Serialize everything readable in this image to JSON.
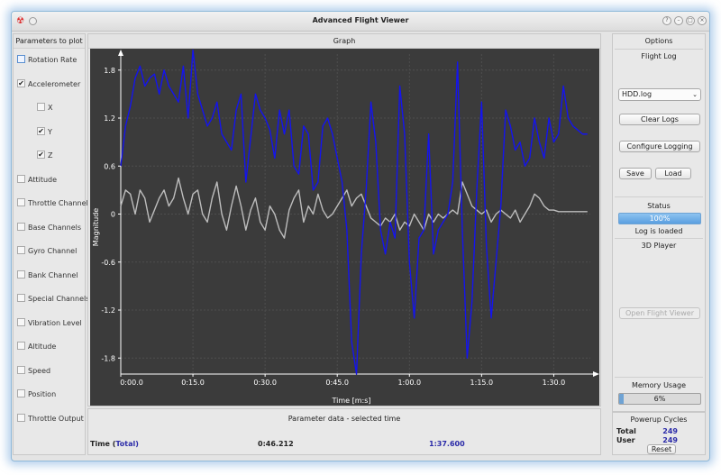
{
  "window": {
    "title": "Advanced Flight Viewer"
  },
  "parameters": {
    "header": "Parameters to plot",
    "items": [
      {
        "label": "Rotation Rate",
        "checked": false,
        "indent": false
      },
      {
        "label": "Accelerometer",
        "checked": true,
        "indent": false
      },
      {
        "label": "X",
        "checked": false,
        "indent": true
      },
      {
        "label": "Y",
        "checked": true,
        "indent": true
      },
      {
        "label": "Z",
        "checked": true,
        "indent": true
      },
      {
        "label": "Attitude",
        "checked": false,
        "indent": false
      },
      {
        "label": "Throttle Channel",
        "checked": false,
        "indent": false
      },
      {
        "label": "Base Channels",
        "checked": false,
        "indent": false
      },
      {
        "label": "Gyro Channel",
        "checked": false,
        "indent": false
      },
      {
        "label": "Bank Channel",
        "checked": false,
        "indent": false
      },
      {
        "label": "Special Channels",
        "checked": false,
        "indent": false
      },
      {
        "label": "Vibration Level",
        "checked": false,
        "indent": false
      },
      {
        "label": "Altitude",
        "checked": false,
        "indent": false
      },
      {
        "label": "Speed",
        "checked": false,
        "indent": false
      },
      {
        "label": "Position",
        "checked": false,
        "indent": false
      },
      {
        "label": "Throttle Output",
        "checked": false,
        "indent": false
      }
    ]
  },
  "graph": {
    "header": "Graph",
    "ylabel": "Magnitude",
    "xlabel": "Time [m:s]",
    "ylim": [
      -2.0,
      2.0
    ],
    "xlim_seconds": [
      0,
      97.6
    ],
    "yticks": [
      "1.8",
      "1.2",
      "0.6",
      "0",
      "-0.6",
      "-1.2",
      "-1.8"
    ],
    "ytick_values": [
      1.8,
      1.2,
      0.6,
      0,
      -0.6,
      -1.2,
      -1.8
    ],
    "xticks": [
      "0:00.0",
      "0:15.0",
      "0:30.0",
      "0:45.0",
      "1:00.0",
      "1:15.0",
      "1:30.0"
    ],
    "xtick_values": [
      0,
      15,
      30,
      45,
      60,
      75,
      90
    ],
    "colors": {
      "background": "#3b3b3b",
      "grid": "#4e4e4e",
      "series_y": "#1414ee",
      "series_z": "#bdbdbd",
      "axis": "#ffffff"
    }
  },
  "chart_data": {
    "type": "line",
    "ylabel": "Magnitude",
    "xlabel": "Time [m:s]",
    "grid": true,
    "series": [
      {
        "color": "#1414ee",
        "x": [
          0,
          1,
          2,
          3,
          4,
          5,
          6,
          7,
          8,
          9,
          10,
          11,
          12,
          13,
          14,
          15,
          16,
          17,
          18,
          19,
          20,
          21,
          22,
          23,
          24,
          25,
          26,
          27,
          28,
          29,
          30,
          31,
          32,
          33,
          34,
          35,
          36,
          37,
          38,
          39,
          40,
          41,
          42,
          43,
          44,
          45,
          46,
          47,
          48,
          49,
          50,
          51,
          52,
          53,
          54,
          55,
          56,
          57,
          58,
          59,
          60,
          61,
          62,
          63,
          64,
          65,
          66,
          67,
          68,
          69,
          70,
          71,
          72,
          73,
          74,
          75,
          76,
          77,
          78,
          79,
          80,
          81,
          82,
          83,
          84,
          85,
          86,
          87,
          88,
          89,
          90,
          91,
          92,
          93,
          94,
          95,
          96,
          97
        ],
        "y": [
          0.6,
          1.1,
          1.35,
          1.7,
          1.85,
          1.6,
          1.7,
          1.75,
          1.5,
          1.8,
          1.6,
          1.5,
          1.4,
          1.85,
          1.2,
          2.05,
          1.5,
          1.3,
          1.1,
          1.2,
          1.4,
          1.0,
          0.9,
          0.8,
          1.3,
          1.5,
          0.4,
          0.95,
          1.5,
          1.3,
          1.2,
          1.05,
          0.7,
          1.3,
          1.0,
          1.3,
          0.6,
          0.5,
          1.1,
          1.0,
          0.3,
          0.4,
          1.1,
          1.2,
          1.0,
          0.7,
          0.4,
          -0.2,
          -1.6,
          -2.0,
          -0.5,
          0.3,
          1.4,
          0.9,
          -0.2,
          -0.5,
          -0.1,
          -0.3,
          1.6,
          1.0,
          -0.6,
          -1.3,
          -0.3,
          -0.2,
          1.0,
          -0.5,
          -0.2,
          -0.1,
          0.0,
          0.4,
          1.9,
          -0.2,
          -1.8,
          -1.1,
          0.3,
          1.4,
          -0.4,
          -1.3,
          -0.6,
          0.1,
          1.3,
          1.1,
          0.8,
          0.9,
          0.6,
          0.7,
          1.2,
          0.9,
          0.7,
          1.2,
          0.9,
          1.0,
          1.6,
          1.2,
          1.1,
          1.05,
          1.0,
          1.0
        ]
      },
      {
        "color": "#bdbdbd",
        "x": [
          0,
          1,
          2,
          3,
          4,
          5,
          6,
          7,
          8,
          9,
          10,
          11,
          12,
          13,
          14,
          15,
          16,
          17,
          18,
          19,
          20,
          21,
          22,
          23,
          24,
          25,
          26,
          27,
          28,
          29,
          30,
          31,
          32,
          33,
          34,
          35,
          36,
          37,
          38,
          39,
          40,
          41,
          42,
          43,
          44,
          45,
          46,
          47,
          48,
          49,
          50,
          51,
          52,
          53,
          54,
          55,
          56,
          57,
          58,
          59,
          60,
          61,
          62,
          63,
          64,
          65,
          66,
          67,
          68,
          69,
          70,
          71,
          72,
          73,
          74,
          75,
          76,
          77,
          78,
          79,
          80,
          81,
          82,
          83,
          84,
          85,
          86,
          87,
          88,
          89,
          90,
          91,
          92,
          93,
          94,
          95,
          96,
          97
        ],
        "y": [
          0.1,
          0.3,
          0.25,
          0.0,
          0.3,
          0.2,
          -0.1,
          0.05,
          0.2,
          0.3,
          0.1,
          0.2,
          0.45,
          0.2,
          0.0,
          0.25,
          0.3,
          0.0,
          -0.1,
          0.2,
          0.4,
          0.0,
          -0.2,
          0.1,
          0.35,
          0.1,
          -0.2,
          0.05,
          0.2,
          -0.1,
          -0.2,
          0.1,
          0.0,
          -0.2,
          -0.3,
          0.05,
          0.2,
          0.3,
          -0.1,
          0.1,
          0.0,
          0.25,
          0.05,
          -0.05,
          0.0,
          0.1,
          0.2,
          0.3,
          0.1,
          0.2,
          0.25,
          0.1,
          -0.05,
          -0.1,
          -0.15,
          -0.05,
          -0.1,
          0.0,
          -0.2,
          -0.1,
          -0.15,
          0.0,
          -0.1,
          -0.2,
          0.0,
          -0.1,
          0.0,
          -0.05,
          0.0,
          0.05,
          0.0,
          0.4,
          0.25,
          0.1,
          0.05,
          0.0,
          0.05,
          -0.1,
          0.0,
          0.05,
          0.0,
          -0.05,
          0.05,
          -0.1,
          0.0,
          0.1,
          0.25,
          0.2,
          0.1,
          0.05,
          0.05,
          0.03,
          0.03,
          0.03,
          0.03,
          0.03,
          0.03,
          0.03
        ]
      }
    ]
  },
  "parameter_data": {
    "header": "Parameter data - selected time",
    "time_label": "Time (",
    "time_total": "Total",
    "time_close": ")",
    "selected_time": "0:46.212",
    "total_time": "1:37.600"
  },
  "options": {
    "header": "Options",
    "flight_log_label": "Flight Log",
    "log_select_value": "HDD.log",
    "clear_logs": "Clear Logs",
    "configure_logging": "Configure Logging",
    "save": "Save",
    "load": "Load",
    "status_label": "Status",
    "status_progress": "100%",
    "status_fraction": 1.0,
    "status_message": "Log is loaded",
    "player_label": "3D Player",
    "open_flight_viewer": "Open Flight Viewer",
    "memory_label": "Memory Usage",
    "memory_text": "6%",
    "memory_fraction": 0.06
  },
  "powerup": {
    "header": "Powerup Cycles",
    "total_label": "Total",
    "total_value": "249",
    "user_label": "User",
    "user_value": "249",
    "reset": "Reset"
  }
}
